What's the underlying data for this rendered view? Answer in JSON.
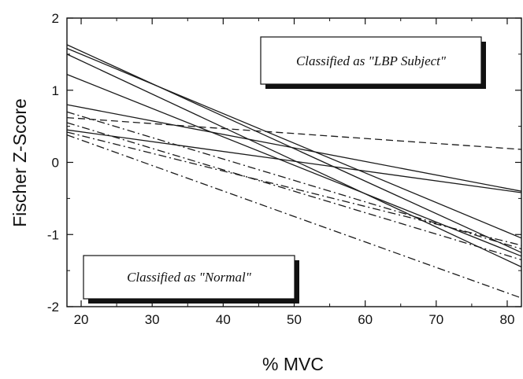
{
  "chart_data": {
    "type": "line",
    "xlabel": "% MVC",
    "ylabel": "Fischer Z-Score",
    "xlim": [
      18,
      82
    ],
    "ylim": [
      -2,
      2
    ],
    "x_ticks": [
      20,
      30,
      40,
      50,
      60,
      70,
      80
    ],
    "y_ticks": [
      -2,
      -1,
      0,
      1,
      2
    ],
    "grid": false,
    "annotations": [
      {
        "text": "Classified as \"LBP Subject\"",
        "placement": "top-right"
      },
      {
        "text": "Classified as \"Normal\"",
        "placement": "bottom-left"
      }
    ],
    "series": [
      {
        "style": "solid",
        "x": [
          18,
          82
        ],
        "y": [
          1.63,
          -1.25
        ]
      },
      {
        "style": "solid",
        "x": [
          18,
          82
        ],
        "y": [
          1.58,
          -1.05
        ]
      },
      {
        "style": "solid",
        "x": [
          18,
          82
        ],
        "y": [
          1.5,
          -1.45
        ]
      },
      {
        "style": "solid",
        "x": [
          18,
          82
        ],
        "y": [
          1.22,
          -1.3
        ]
      },
      {
        "style": "solid",
        "x": [
          18,
          82
        ],
        "y": [
          0.8,
          -0.4
        ]
      },
      {
        "style": "solid",
        "x": [
          18,
          82
        ],
        "y": [
          0.45,
          -0.42
        ]
      },
      {
        "style": "dashed",
        "x": [
          18,
          82
        ],
        "y": [
          0.62,
          0.18
        ]
      },
      {
        "style": "dashdot",
        "x": [
          18,
          82
        ],
        "y": [
          0.7,
          -1.2
        ]
      },
      {
        "style": "dashdot",
        "x": [
          18,
          82
        ],
        "y": [
          0.55,
          -1.35
        ]
      },
      {
        "style": "dashdot",
        "x": [
          18,
          82
        ],
        "y": [
          0.42,
          -1.15
        ]
      },
      {
        "style": "dashdot",
        "x": [
          18,
          82
        ],
        "y": [
          0.38,
          -1.88
        ]
      }
    ]
  }
}
